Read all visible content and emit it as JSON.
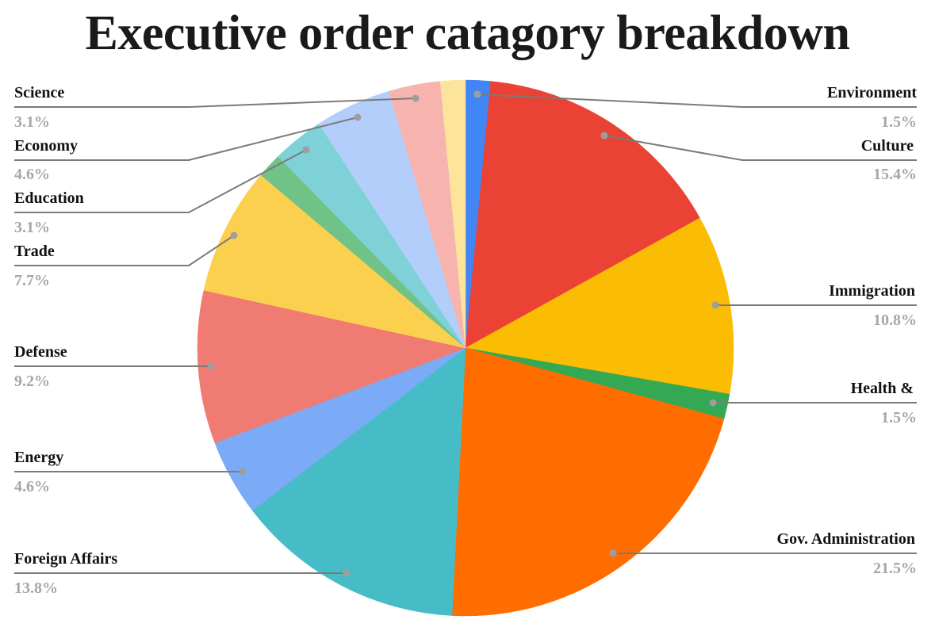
{
  "title": "Executive order catagory breakdown",
  "chart_data": {
    "type": "pie",
    "title": "Executive order catagory breakdown",
    "start_angle_deg": 0,
    "direction": "clockwise",
    "slices": [
      {
        "label": "Environment",
        "value": 1.5,
        "color": "#4285f4"
      },
      {
        "label": "Culture",
        "value": 15.4,
        "color": "#ea4335"
      },
      {
        "label": "Immigration",
        "value": 10.8,
        "color": "#fbbc04"
      },
      {
        "label": "Health &",
        "value": 1.5,
        "color": "#34a853"
      },
      {
        "label": "Gov. Administration",
        "value": 21.5,
        "color": "#ff6d01"
      },
      {
        "label": "Foreign Affairs",
        "value": 13.8,
        "color": "#46bdc6"
      },
      {
        "label": "Energy",
        "value": 4.6,
        "color": "#7baaf7"
      },
      {
        "label": "Defense",
        "value": 9.2,
        "color": "#f07b72"
      },
      {
        "label": "Trade",
        "value": 7.7,
        "color": "#fcd04f"
      },
      {
        "label": "",
        "value": 1.5,
        "color": "#71c287"
      },
      {
        "label": "Education",
        "value": 3.1,
        "color": "#7ed1d7"
      },
      {
        "label": "Economy",
        "value": 4.6,
        "color": "#b3cefb"
      },
      {
        "label": "Science",
        "value": 3.1,
        "color": "#f7b4ae"
      },
      {
        "label": "",
        "value": 1.5,
        "color": "#fde49b"
      }
    ],
    "legend_position": "labels with leader lines"
  },
  "labels": {
    "left": [
      {
        "name": "Science",
        "pct": "3.1%"
      },
      {
        "name": "Economy",
        "pct": "4.6%"
      },
      {
        "name": "Education",
        "pct": "3.1%"
      },
      {
        "name": "Trade",
        "pct": "7.7%"
      },
      {
        "name": "Defense",
        "pct": "9.2%"
      },
      {
        "name": "Energy",
        "pct": "4.6%"
      },
      {
        "name": "Foreign Affairs",
        "pct": "13.8%"
      }
    ],
    "right": [
      {
        "name": "Environment",
        "pct": "1.5%"
      },
      {
        "name": "Culture",
        "pct": "15.4%"
      },
      {
        "name": "Immigration",
        "pct": "10.8%"
      },
      {
        "name": "Health &",
        "pct": "1.5%"
      },
      {
        "name": "Gov. Administration",
        "pct": "21.5%"
      }
    ]
  }
}
